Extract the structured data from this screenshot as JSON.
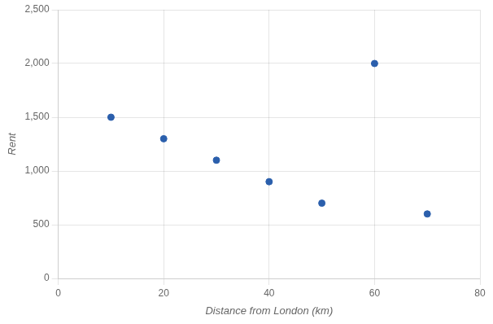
{
  "chart_data": {
    "type": "scatter",
    "x": [
      10,
      20,
      30,
      40,
      50,
      60,
      70
    ],
    "values": [
      1500,
      1300,
      1100,
      900,
      700,
      2000,
      600
    ],
    "color": "#2b5fac",
    "marker": "circle",
    "xlabel": "Distance from London (km)",
    "ylabel": "Rent",
    "xlim": [
      0,
      80
    ],
    "ylim": [
      0,
      2500
    ],
    "xticks": [
      0,
      20,
      40,
      60,
      80
    ],
    "yticks": [
      0,
      500,
      {
        "value": 1000,
        "label": "1,000"
      },
      {
        "value": 1500,
        "label": "1,500"
      },
      {
        "value": 2000,
        "label": "2,000"
      },
      {
        "value": 2500,
        "label": "2,500"
      }
    ],
    "grid": true
  }
}
